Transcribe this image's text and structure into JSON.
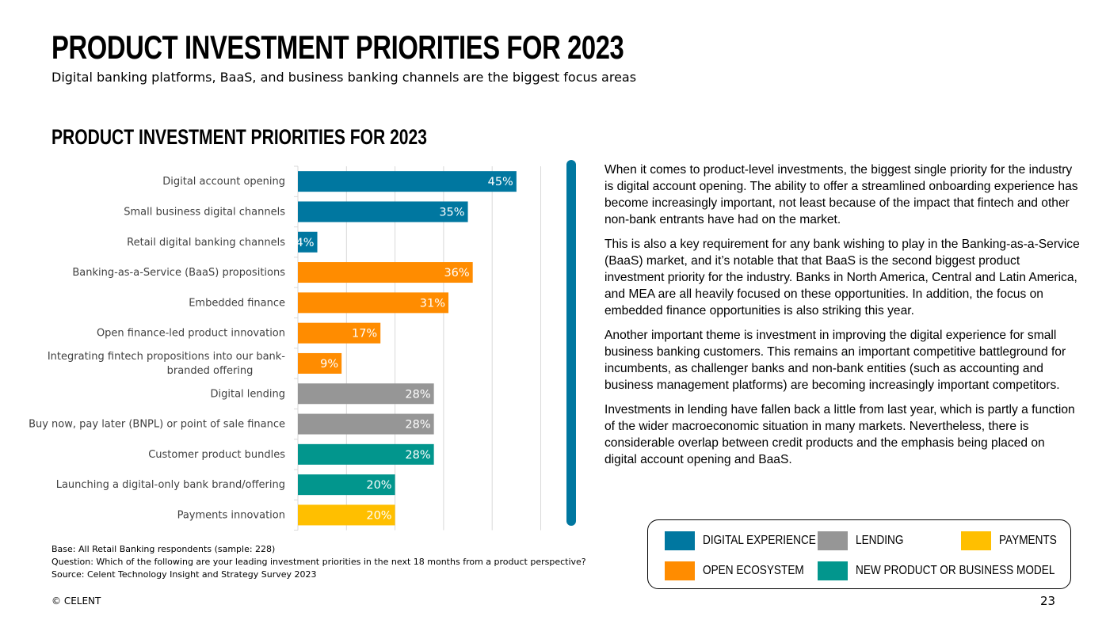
{
  "slide": {
    "title": "PRODUCT INVESTMENT PRIORITIES FOR 2023",
    "subtitle": "Digital banking platforms, BaaS, and business banking channels are the biggest focus areas",
    "page_number": "23",
    "copyright": "© CELENT"
  },
  "notes": {
    "base": "Base: All Retail Banking respondents (sample: 228)",
    "question": "Question: Which of the following are your leading investment priorities in the next 18 months from a product perspective?",
    "source": "Source: Celent Technology Insight and Strategy Survey 2023"
  },
  "body": [
    "When it comes to product-level investments, the biggest single priority for the industry is digital account opening. The ability to offer a streamlined onboarding experience has become increasingly important, not least because of the impact that fintech and other non-bank entrants have had on the market.",
    "This is also a key requirement for any bank wishing to play in the Banking-as-a-Service (BaaS) market, and it’s notable that that BaaS is the second biggest product investment priority for the industry. Banks in North America, Central and Latin America, and MEA are all heavily focused on these opportunities. In addition, the focus on embedded finance opportunities is also striking this year.",
    "Another important theme is investment in improving the digital experience for small business banking customers. This remains an important competitive battleground for incumbents, as challenger banks and non-bank entities (such as accounting and business management platforms) are becoming increasingly important competitors.",
    "Investments in lending have fallen back a little from last year, which is partly a function of the wider macroeconomic situation in many markets. Nevertheless, there is considerable overlap between credit products and the emphasis being placed on digital account opening and BaaS."
  ],
  "legend": [
    {
      "label": "DIGITAL EXPERIENCE",
      "color": "#0077A0"
    },
    {
      "label": "LENDING",
      "color": "#969696"
    },
    {
      "label": "PAYMENTS",
      "color": "#FFBF00"
    },
    {
      "label": "OPEN ECOSYSTEM",
      "color": "#FF8C00"
    },
    {
      "label": "NEW PRODUCT OR BUSINESS MODEL",
      "color": "#02968D"
    }
  ],
  "chart_data": {
    "type": "bar",
    "orientation": "horizontal",
    "title": "PRODUCT INVESTMENT PRIORITIES FOR 2023",
    "xlim": [
      0,
      50
    ],
    "grid": true,
    "categories": [
      [
        "Digital account opening"
      ],
      [
        "Small business digital channels"
      ],
      [
        "Retail digital banking channels"
      ],
      [
        "Banking-as-a-Service (BaaS) propositions"
      ],
      [
        "Embedded finance"
      ],
      [
        "Open finance-led product innovation"
      ],
      [
        "Integrating fintech propositions into our bank-",
        "branded offering"
      ],
      [
        "Digital lending"
      ],
      [
        "Buy now, pay later (BNPL) or point of sale finance"
      ],
      [
        "Customer product bundles"
      ],
      [
        "Launching a digital-only bank brand/offering"
      ],
      [
        "Payments innovation"
      ]
    ],
    "values": [
      45,
      35,
      4,
      36,
      31,
      17,
      9,
      28,
      28,
      28,
      20,
      20
    ],
    "value_labels": [
      "45%",
      "35%",
      "4%",
      "36%",
      "31%",
      "17%",
      "9%",
      "28%",
      "28%",
      "28%",
      "20%",
      "20%"
    ],
    "groups": [
      "DIGITAL EXPERIENCE",
      "DIGITAL EXPERIENCE",
      "DIGITAL EXPERIENCE",
      "OPEN ECOSYSTEM",
      "OPEN ECOSYSTEM",
      "OPEN ECOSYSTEM",
      "OPEN ECOSYSTEM",
      "LENDING",
      "LENDING",
      "NEW PRODUCT OR BUSINESS MODEL",
      "NEW PRODUCT OR BUSINESS MODEL",
      "PAYMENTS"
    ]
  }
}
